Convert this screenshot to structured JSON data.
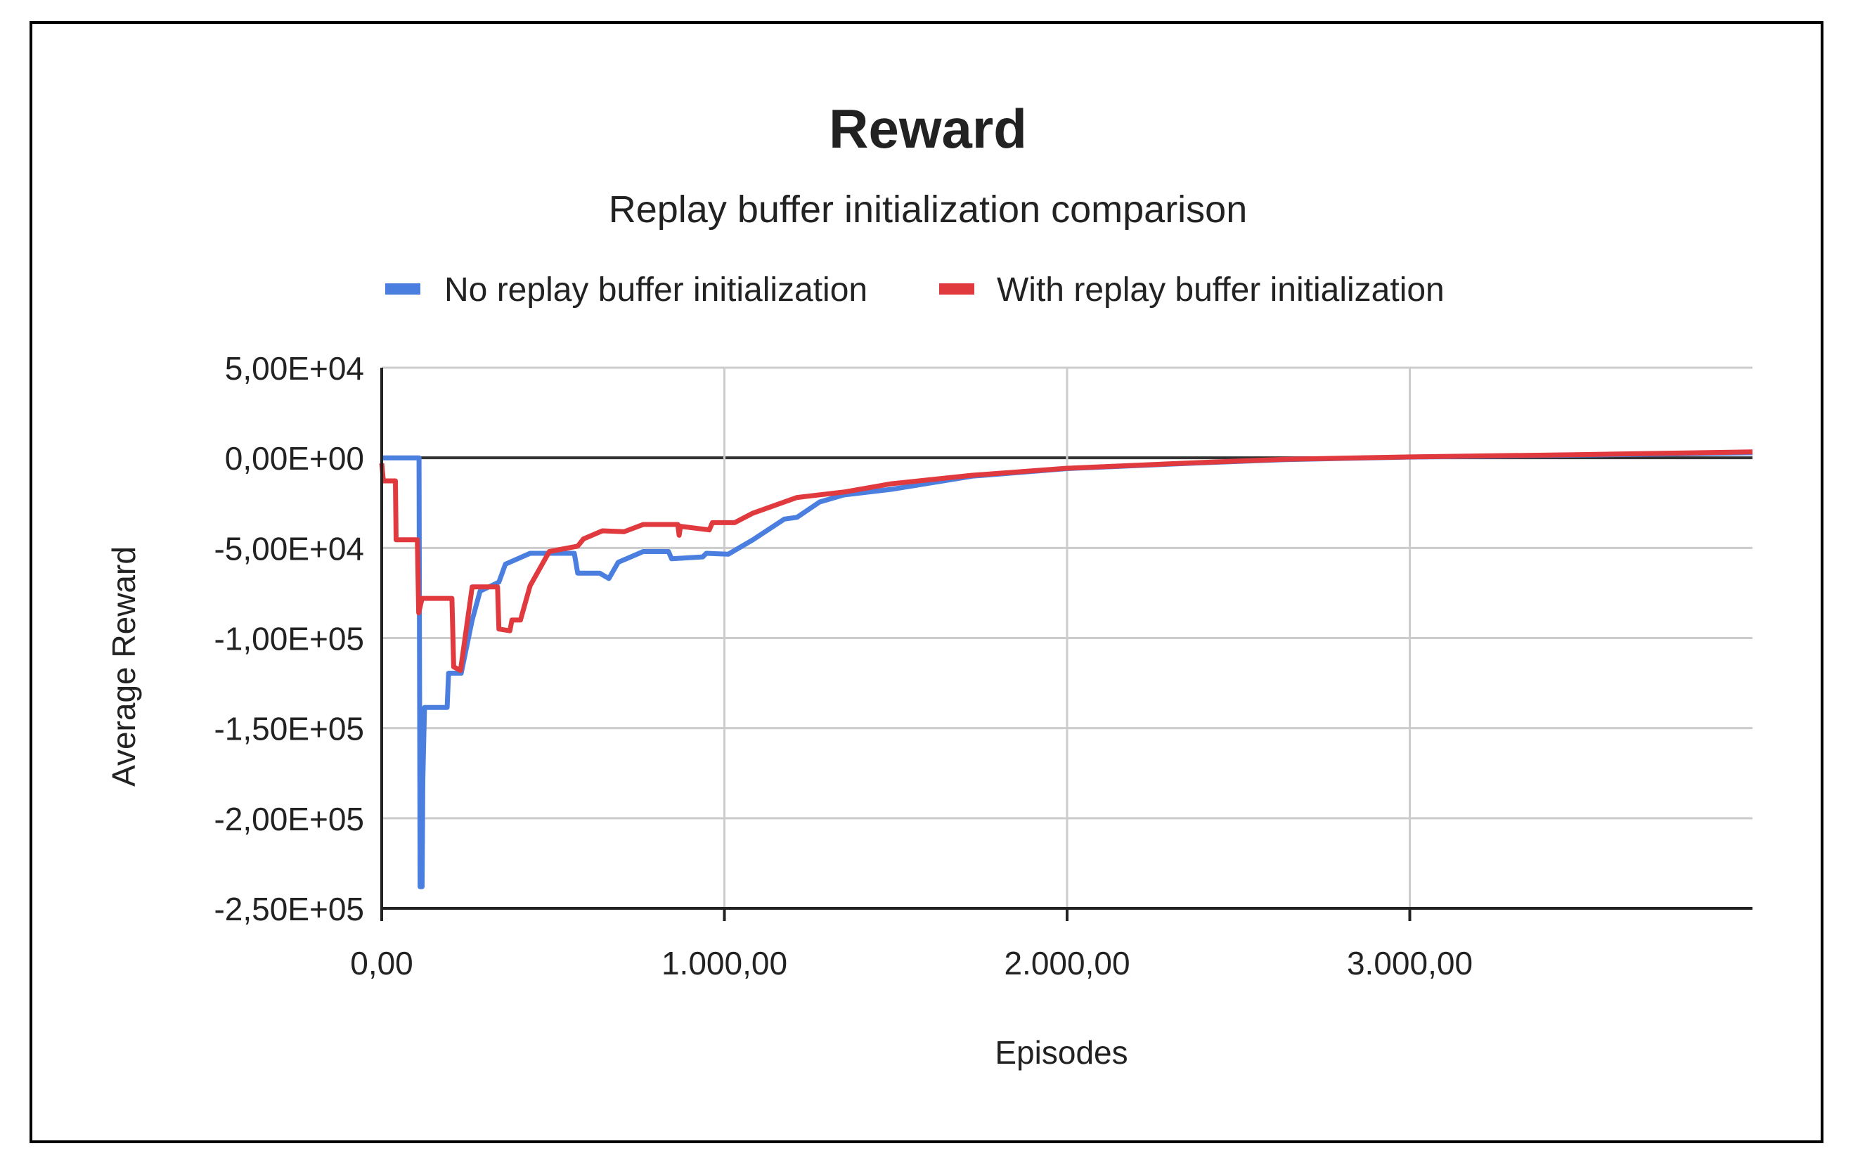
{
  "chart_data": {
    "type": "line",
    "title": "Reward",
    "subtitle": "Replay buffer initialization comparison",
    "xlabel": "Episodes",
    "ylabel": "Average Reward",
    "xlim": [
      0,
      4000
    ],
    "ylim": [
      -250000,
      50000
    ],
    "x_ticks": [
      0,
      1000,
      2000,
      3000
    ],
    "x_tick_labels": [
      "0,00",
      "1.000,00",
      "2.000,00",
      "3.000,00"
    ],
    "y_ticks": [
      50000,
      0,
      -50000,
      -100000,
      -150000,
      -200000,
      -250000
    ],
    "y_tick_labels": [
      "5,00E+04",
      "0,00E+00",
      "-5,00E+04",
      "-1,00E+05",
      "-1,50E+05",
      "-2,00E+05",
      "-2,50E+05"
    ],
    "grid": true,
    "legend_position": "top",
    "series": [
      {
        "name": "No replay buffer initialization",
        "color": "#4a7fe0",
        "points": [
          [
            0,
            0
          ],
          [
            109,
            0
          ],
          [
            112,
            -238000
          ],
          [
            118,
            -238000
          ],
          [
            120,
            -179000
          ],
          [
            125,
            -138500
          ],
          [
            175,
            -138500
          ],
          [
            191,
            -138500
          ],
          [
            195,
            -119500
          ],
          [
            232,
            -119500
          ],
          [
            264,
            -90000
          ],
          [
            287,
            -74000
          ],
          [
            342,
            -69000
          ],
          [
            361,
            -59000
          ],
          [
            433,
            -53000
          ],
          [
            562,
            -53000
          ],
          [
            572,
            -64000
          ],
          [
            636,
            -64000
          ],
          [
            663,
            -67000
          ],
          [
            690,
            -58000
          ],
          [
            763,
            -52000
          ],
          [
            837,
            -52000
          ],
          [
            846,
            -56000
          ],
          [
            937,
            -55000
          ],
          [
            947,
            -53000
          ],
          [
            1011,
            -53500
          ],
          [
            1083,
            -45500
          ],
          [
            1175,
            -34000
          ],
          [
            1212,
            -33000
          ],
          [
            1278,
            -24500
          ],
          [
            1348,
            -20600
          ],
          [
            1487,
            -17500
          ],
          [
            1723,
            -10200
          ],
          [
            2000,
            -6000
          ],
          [
            2376,
            -2900
          ],
          [
            2638,
            -1000
          ],
          [
            3000,
            400
          ],
          [
            3500,
            1500
          ],
          [
            4000,
            2800
          ]
        ]
      },
      {
        "name": "With replay buffer initialization",
        "color": "#e0393e",
        "points": [
          [
            0,
            -3000
          ],
          [
            5,
            -12800
          ],
          [
            40,
            -12800
          ],
          [
            42,
            -45500
          ],
          [
            104,
            -45500
          ],
          [
            108,
            -86000
          ],
          [
            118,
            -78000
          ],
          [
            205,
            -78000
          ],
          [
            210,
            -116000
          ],
          [
            230,
            -118000
          ],
          [
            264,
            -71600
          ],
          [
            338,
            -71600
          ],
          [
            342,
            -95000
          ],
          [
            374,
            -96000
          ],
          [
            380,
            -90000
          ],
          [
            405,
            -90000
          ],
          [
            433,
            -71000
          ],
          [
            489,
            -52000
          ],
          [
            572,
            -49000
          ],
          [
            589,
            -45000
          ],
          [
            644,
            -40500
          ],
          [
            707,
            -41000
          ],
          [
            763,
            -37000
          ],
          [
            864,
            -37000
          ],
          [
            868,
            -43000
          ],
          [
            872,
            -38000
          ],
          [
            956,
            -40000
          ],
          [
            965,
            -36000
          ],
          [
            1030,
            -36000
          ],
          [
            1083,
            -30700
          ],
          [
            1212,
            -22000
          ],
          [
            1348,
            -19000
          ],
          [
            1487,
            -14400
          ],
          [
            1723,
            -9700
          ],
          [
            2000,
            -5800
          ],
          [
            2376,
            -2700
          ],
          [
            2638,
            -800
          ],
          [
            3000,
            500
          ],
          [
            3500,
            1800
          ],
          [
            4000,
            3300
          ]
        ]
      }
    ]
  }
}
